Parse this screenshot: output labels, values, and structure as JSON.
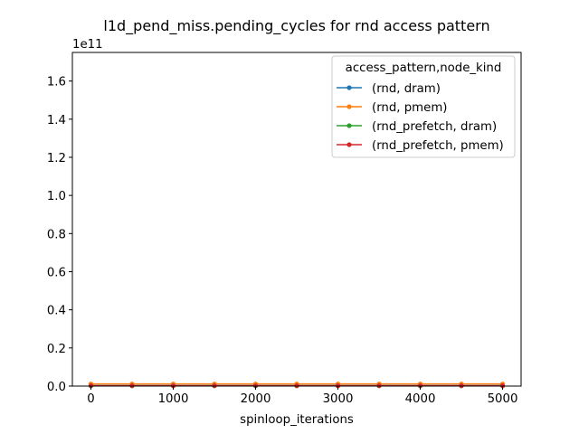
{
  "chart_data": {
    "type": "line",
    "title": "l1d_pend_miss.pending_cycles for rnd access pattern",
    "xlabel": "spinloop_iterations",
    "ylabel": "",
    "y_offset_label": "1e11",
    "xlim": [
      -225,
      5225
    ],
    "ylim": [
      0,
      1.75
    ],
    "x_ticks": [
      0,
      1000,
      2000,
      3000,
      4000,
      5000
    ],
    "x_tick_labels": [
      "0",
      "1000",
      "2000",
      "3000",
      "4000",
      "5000"
    ],
    "y_ticks": [
      0.0,
      0.2,
      0.4,
      0.6,
      0.8,
      1.0,
      1.2,
      1.4,
      1.6
    ],
    "y_tick_labels": [
      "0.0",
      "0.2",
      "0.4",
      "0.6",
      "0.8",
      "1.0",
      "1.2",
      "1.4",
      "1.6"
    ],
    "grid": false,
    "legend": {
      "title": "access_pattern,node_kind",
      "placement": "top-right"
    },
    "x": [
      0,
      500,
      1000,
      1500,
      2000,
      2500,
      3000,
      3500,
      4000,
      4500,
      5000
    ],
    "series": [
      {
        "name": "(rnd, dram)",
        "color": "#1f77b4",
        "values": [
          0.01,
          0.01,
          0.01,
          0.01,
          0.01,
          0.01,
          0.01,
          0.01,
          0.01,
          0.01,
          0.01
        ]
      },
      {
        "name": "(rnd, pmem)",
        "color": "#ff7f0e",
        "values": [
          0.011,
          0.011,
          0.011,
          0.011,
          0.011,
          0.011,
          0.011,
          0.011,
          0.011,
          0.011,
          0.011
        ]
      },
      {
        "name": "(rnd_prefetch, dram)",
        "color": "#2ca02c",
        "values": [
          0.001,
          0.001,
          0.001,
          0.001,
          0.001,
          0.001,
          0.001,
          0.001,
          0.001,
          0.001,
          0.001
        ]
      },
      {
        "name": "(rnd_prefetch, pmem)",
        "color": "#d62728",
        "values": [
          0.002,
          0.002,
          0.002,
          0.002,
          0.002,
          0.002,
          0.002,
          0.002,
          0.002,
          0.002,
          0.002
        ]
      }
    ]
  }
}
